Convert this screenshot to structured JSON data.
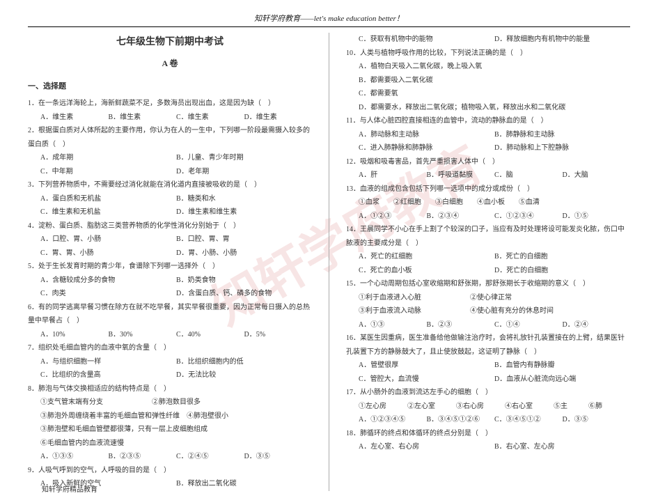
{
  "header": "知轩学府教育——let's make education better！",
  "title": "七年级生物下前期中考试",
  "subtitle": "A 卷",
  "section": "一、选择题",
  "watermark": "知轩学府教育",
  "footer": "知轩学府精品教育",
  "left": {
    "q1": "1．在一条远洋海轮上，海新鲜蔬菜不足，多数海员出现出血，这是因为缺（　）",
    "q1a": "A．维生素",
    "q1b": "B．维生素",
    "q1c": "C．维生素",
    "q1d": "D．维生素",
    "q2": "2．根据蛋白质对人体所起的主要作用，你认为在人的一生中，下列哪一阶段最需摄入较多的蛋白质（　）",
    "q2a": "A．成年期",
    "q2b": "B．儿童、青少年时期",
    "q2c": "C．中年期",
    "q2d": "D．老年期",
    "q3": "3．下列营养物质中，不需要经过消化就能在消化道内直接被吸收的是（　）",
    "q3a": "A．蛋白质和无机盐",
    "q3b": "B．糖类和水",
    "q3c": "C．维生素和无机盐",
    "q3d": "D．维生素和维生素",
    "q4": "4．淀粉、蛋白质、脂肪这三类营养物质的化学性消化分别始于（　）",
    "q4a": "A．口腔、胃、小肠",
    "q4b": "B．口腔、胃、胃",
    "q4c": "C．胃、胃、小肠",
    "q4d": "D．胃、小肠、小肠",
    "q5": "5．处于生长发育时期的青少年，食谱除下列哪一选择外（　）",
    "q5a": "A．含糖较成分多的食物",
    "q5b": "B．奶类食物",
    "q5c": "C．肉类",
    "q5d": "D．含蛋白质、钙、磷多的食物",
    "q6": "6．有的同学逃离早餐习惯在除方在就不吃早餐，其实早餐很重要，因为正常每日摄入的总热量中早餐占（　）",
    "q6a": "A．10%",
    "q6b": "B．30%",
    "q6c": "C．40%",
    "q6d": "D．5%",
    "q7": "7．组织处毛细血管内的血液中氧的含量（　）",
    "q7a": "A．与组织细胞一样",
    "q7b": "B．比组织细胞内的低",
    "q7c": "C．比组织的含量高",
    "q7d": "D．无法比较",
    "q8": "8．肺泡与气体交换相适应的结构特点是（　）",
    "q8s1": "①支气管末端有分支　　　　　　　②肺泡数目很多",
    "q8s2": "③肺泡外周缠绕着丰富的毛细血管和弹性纤维　④肺泡壁很小",
    "q8s3": "③肺泡壁和毛细血管壁都很薄，只有一层上皮细胞组成",
    "q8s4": "⑥毛细血管内的血液流速慢",
    "q8a": "A．①③⑤",
    "q8b": "B．②③⑤",
    "q8c": "C．②④⑤",
    "q8d": "D．③⑤",
    "q9": "9．人吸气呼到的空气，人呼吸的目的是（　）",
    "q9a": "A．吸入新鲜的空气",
    "q9b": "B．释放出二氧化碳"
  },
  "right": {
    "q9c": "C．获取有机物中的能物",
    "q9d": "D．释放细胞内有机物中的能量",
    "q10": "10．人类与植物呼吸作用的比较，下列说法正确的是（　）",
    "q10a": "A．植物白天吸入二氧化碳，晚上吸入氧",
    "q10b": "B．都需要吸入二氧化碳",
    "q10c": "C．都需要氧",
    "q10d": "D．都需要水，释放出二氧化碳；植物吸入氧，释放出水和二氧化碳",
    "q11": "11．与人体心脏四腔直接相连的血管中，流动的静脉血的是（　）",
    "q11a": "A．肺动脉和主动脉",
    "q11b": "B．肺静脉和主动脉",
    "q11c": "C．进入肺静脉和肺静脉",
    "q11d": "D．肺动脉和上下腔静脉",
    "q12": "12．吸烟和吸毒害品，首先严重损害人体中（　）",
    "q12a": "A．肝",
    "q12b": "B．呼吸道黏膜",
    "q12c": "C．脑",
    "q12d": "D．大脑",
    "q13": "13．血液的组成包含包括下列哪一选项中的成分或成份（　）",
    "q13s": "①血浆　　②红细胞　　③白细胞　　④血小板　　⑤血清",
    "q13a": "A．①②③",
    "q13b": "B．②③④",
    "q13c": "C．①②③④",
    "q13d": "D．①⑤",
    "q14": "14．王晨同学不小心在手上割了个较深的口子，当应有及时处理将设可能发炎化脓，伤口中脓液的主要成分是（　）",
    "q14a": "A．死亡的红细胞",
    "q14b": "B．死亡的白细胞",
    "q14c": "C．死亡的血小板",
    "q14d": "D．死亡的白细胞",
    "q15": "15．一个心动周期包括心室收缩期和舒张期，那舒张期长于收缩期的意义（　）",
    "q15s1": "①利于血液进入心脏　　　　　　　②使心律正常",
    "q15s2": "③利于血液流入动脉　　　　　　　④使心脏有充分的休息时间",
    "q15a": "A．①③",
    "q15b": "B．②③",
    "q15c": "C．①④",
    "q15d": "D．②④",
    "q16": "16．某医生因重病，医生准备给他做输注治疗时，会将礼放针孔装置接在的上臂，结果医针孔装置下方的静脉鼓大了，且止使放鼓起，这证明了静脉（　）",
    "q16a": "A．管壁很厚",
    "q16b": "B．血管内有静脉瓣",
    "q16c": "C．管腔大，血流慢",
    "q16d": "D．血液从心脏流向远心端",
    "q17": "17．从小肠外的血液到流达左手心的细胞（　）",
    "q17s": "①左心房　　　②左心室　　　③右心房　　　④右心室　　　⑤主　　　⑥肺",
    "q17a": "A．①②③④⑤",
    "q17b": "B．③④⑤①②⑥",
    "q17c": "C．③④⑤①②",
    "q17d": "D．③⑤",
    "q18": "18．肺循环的终点和体循环的终点分别是（　）",
    "q18a": "A．左心室、右心房",
    "q18b": "B．右心室、左心房"
  }
}
